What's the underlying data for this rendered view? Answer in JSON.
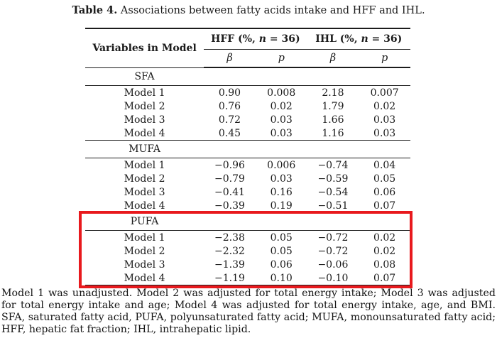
{
  "title": {
    "label": "Table 4.",
    "text": " Associations between fatty acids intake and HFF and IHL."
  },
  "table": {
    "col1_header": "Variables in Model",
    "spanners": [
      {
        "pre": "HFF (%, ",
        "sym": "n",
        "post": " = 36)"
      },
      {
        "pre": "IHL (%, ",
        "sym": "n",
        "post": " = 36)"
      }
    ],
    "subheaders": [
      "β",
      "p",
      "β",
      "p"
    ],
    "sections": [
      {
        "name": "SFA",
        "rows": [
          {
            "label": "Model 1",
            "values": [
              "0.90",
              "0.008",
              "2.18",
              "0.007"
            ]
          },
          {
            "label": "Model 2",
            "values": [
              "0.76",
              "0.02",
              "1.79",
              "0.02"
            ]
          },
          {
            "label": "Model 3",
            "values": [
              "0.72",
              "0.03",
              "1.66",
              "0.03"
            ]
          },
          {
            "label": "Model 4",
            "values": [
              "0.45",
              "0.03",
              "1.16",
              "0.03"
            ]
          }
        ]
      },
      {
        "name": "MUFA",
        "rows": [
          {
            "label": "Model 1",
            "values": [
              "−0.96",
              "0.006",
              "−0.74",
              "0.04"
            ]
          },
          {
            "label": "Model 2",
            "values": [
              "−0.79",
              "0.03",
              "−0.59",
              "0.05"
            ]
          },
          {
            "label": "Model 3",
            "values": [
              "−0.41",
              "0.16",
              "−0.54",
              "0.06"
            ]
          },
          {
            "label": "Model 4",
            "values": [
              "−0.39",
              "0.19",
              "−0.51",
              "0.07"
            ]
          }
        ]
      },
      {
        "name": "PUFA",
        "highlighted": true,
        "rows": [
          {
            "label": "Model 1",
            "values": [
              "−2.38",
              "0.05",
              "−0.72",
              "0.02"
            ]
          },
          {
            "label": "Model 2",
            "values": [
              "−2.32",
              "0.05",
              "−0.72",
              "0.02"
            ]
          },
          {
            "label": "Model 3",
            "values": [
              "−1.39",
              "0.06",
              "−0.06",
              "0.08"
            ]
          },
          {
            "label": "Model 4",
            "values": [
              "−1.19",
              "0.10",
              "−0.10",
              "0.07"
            ]
          }
        ]
      }
    ]
  },
  "highlight_color": "#e8191d",
  "footnote": "Model 1 was unadjusted. Model 2 was adjusted for total energy intake; Model 3 was adjusted for total energy intake and age; Model 4 was adjusted for total energy intake, age, and BMI. SFA, saturated fatty acid, PUFA, polyunsaturated fatty acid; MUFA, monounsaturated fatty acid; HFF, hepatic fat fraction; IHL, intrahepatic lipid."
}
